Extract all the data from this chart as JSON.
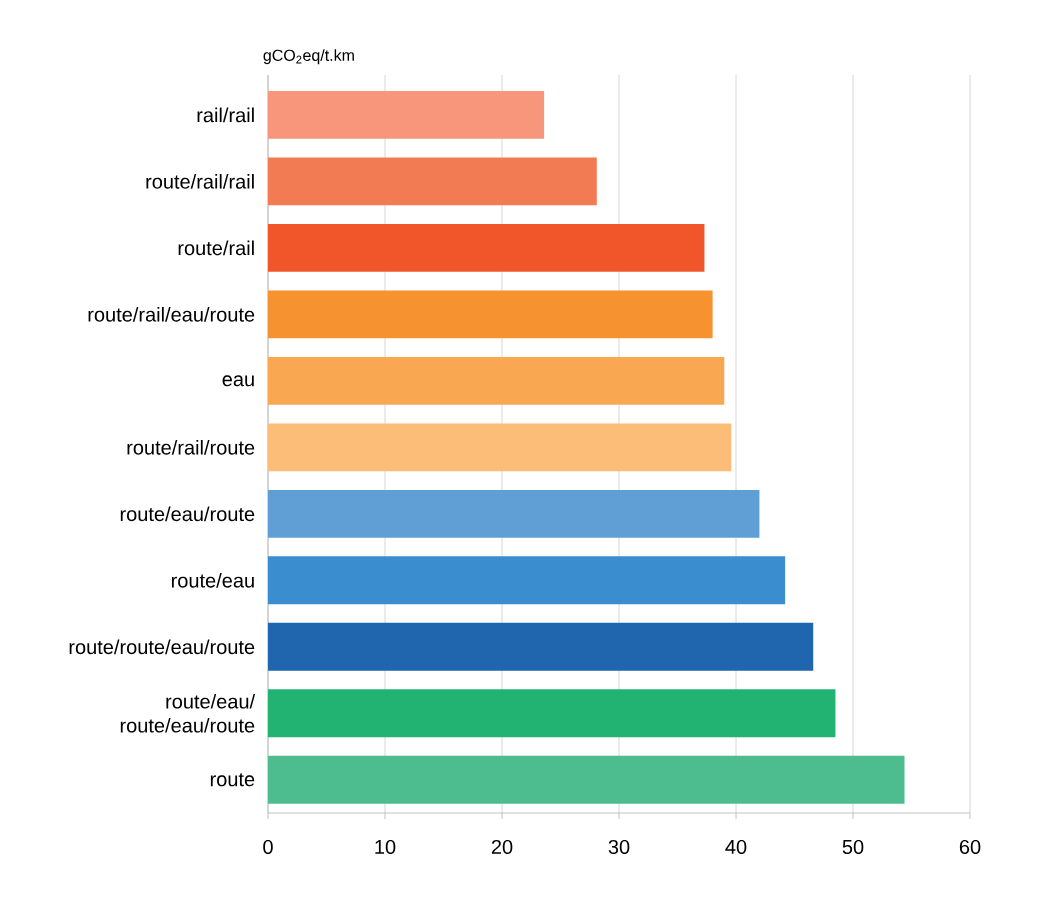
{
  "chart_data": {
    "type": "bar",
    "orientation": "horizontal",
    "ylabel": "gCO$_{2}$eq/t.km",
    "categories": [
      "rail/rail",
      "route/rail/rail",
      "route/rail",
      "route/rail/eau/route",
      "eau",
      "route/rail/route",
      "route/eau/route",
      "route/eau",
      "route/route/eau/route",
      "route/eau/ route/eau/route",
      "route"
    ],
    "values": [
      23.6,
      28.1,
      37.3,
      38.0,
      39.0,
      39.6,
      42.0,
      44.2,
      46.6,
      48.5,
      54.4
    ],
    "colors": [
      "#f7967a",
      "#f37b53",
      "#f0562a",
      "#f6922f",
      "#f9a751",
      "#fcbd78",
      "#5f9fd5",
      "#3a8dce",
      "#1f66ae",
      "#22b373",
      "#4dbd8f"
    ],
    "xlim": [
      0,
      60
    ],
    "xticks": [
      0,
      10,
      20,
      30,
      40,
      50,
      60
    ],
    "grid": "x"
  }
}
